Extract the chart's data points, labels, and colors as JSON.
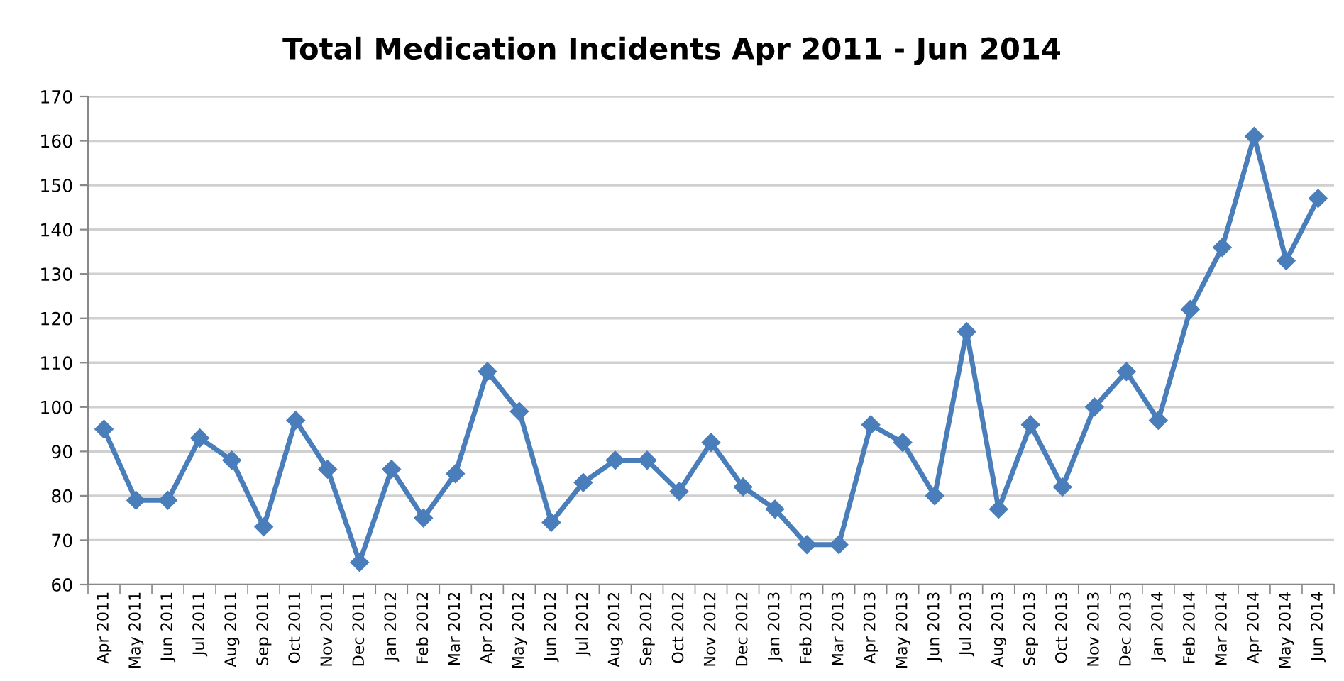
{
  "chart_data": {
    "type": "line",
    "title": "Total Medication Incidents Apr 2011 - Jun 2014",
    "categories": [
      "Apr 2011",
      "May 2011",
      "Jun 2011",
      "Jul 2011",
      "Aug 2011",
      "Sep 2011",
      "Oct 2011",
      "Nov 2011",
      "Dec 2011",
      "Jan 2012",
      "Feb 2012",
      "Mar 2012",
      "Apr 2012",
      "May 2012",
      "Jun 2012",
      "Jul 2012",
      "Aug 2012",
      "Sep 2012",
      "Oct 2012",
      "Nov 2012",
      "Dec 2012",
      "Jan 2013",
      "Feb 2013",
      "Mar 2013",
      "Apr 2013",
      "May 2013",
      "Jun 2013",
      "Jul 2013",
      "Aug 2013",
      "Sep 2013",
      "Oct 2013",
      "Nov 2013",
      "Dec 2013",
      "Jan 2014",
      "Feb 2014",
      "Mar 2014",
      "Apr 2014",
      "May 2014",
      "Jun 2014"
    ],
    "series": [
      {
        "color": "#4a7ebb",
        "values": [
          95,
          79,
          79,
          93,
          88,
          73,
          97,
          86,
          65,
          86,
          75,
          85,
          108,
          99,
          74,
          83,
          88,
          88,
          81,
          92,
          82,
          77,
          69,
          69,
          96,
          92,
          80,
          117,
          77,
          96,
          82,
          100,
          108,
          97,
          122,
          136,
          161,
          133,
          147
        ]
      }
    ],
    "ylim": [
      60,
      170
    ],
    "yticks": [
      60,
      70,
      80,
      90,
      100,
      110,
      120,
      130,
      140,
      150,
      160,
      170
    ],
    "grid": "y",
    "marker": "diamond",
    "line_style": "solid"
  }
}
